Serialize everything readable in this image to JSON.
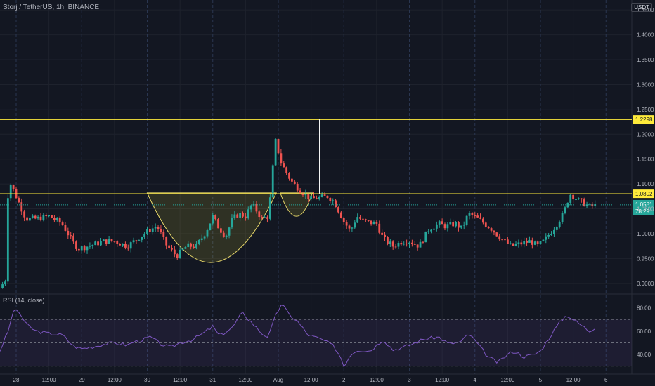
{
  "header": {
    "title": "Storj / TetherUS, 1h, BINANCE",
    "currency": "USDT"
  },
  "colors": {
    "up": "#26a69a",
    "down": "#ef5350",
    "level": "#ffeb3b",
    "rsi": "#7e57c2",
    "bg": "#131722",
    "grid": "#1e222d"
  },
  "chart_data": {
    "type": "candlestick",
    "price_axis": {
      "ticks": [
        "1.4500",
        "1.4000",
        "1.3500",
        "1.3000",
        "1.2500",
        "1.2000",
        "1.1500",
        "1.1000",
        "1.0500",
        "1.0000",
        "0.9500",
        "0.9000"
      ],
      "min": 0.88,
      "max": 1.47
    },
    "time_axis": [
      "28",
      "12:00",
      "29",
      "12:00",
      "30",
      "12:00",
      "31",
      "12:00",
      "Aug",
      "12:00",
      "2",
      "12:00",
      "3",
      "12:00",
      "4",
      "12:00",
      "5",
      "12:00",
      "6"
    ],
    "levels": [
      {
        "label": "1.2298",
        "value": 1.2298
      },
      {
        "label": "1.0802",
        "value": 1.0802
      }
    ],
    "last_price": {
      "label": "1.0581",
      "value": 1.0581,
      "countdown": "78:29"
    },
    "cup_pattern": {
      "start_day": 2.0,
      "bottom_day": 2.95,
      "bottom_price": 0.942,
      "end_day": 3.97,
      "rim": 1.082
    },
    "handle_pattern": {
      "start_day": 4.03,
      "bottom_day": 4.28,
      "bottom_price": 1.035,
      "end_day": 4.52,
      "rim": 1.082
    },
    "target_line": {
      "day": 4.63,
      "from": 1.0802,
      "to": 1.2298
    },
    "anchors": [
      [
        -0.25,
        0.89
      ],
      [
        -0.15,
        0.91
      ],
      [
        -0.12,
        1.11
      ],
      [
        -0.05,
        1.09
      ],
      [
        0.05,
        1.06
      ],
      [
        0.15,
        1.03
      ],
      [
        0.3,
        1.03
      ],
      [
        0.5,
        1.035
      ],
      [
        0.7,
        1.02
      ],
      [
        0.88,
        0.98
      ],
      [
        0.95,
        0.97
      ],
      [
        1.1,
        0.975
      ],
      [
        1.35,
        0.985
      ],
      [
        1.5,
        0.985
      ],
      [
        1.7,
        0.975
      ],
      [
        1.85,
        0.99
      ],
      [
        2.0,
        1.005
      ],
      [
        2.15,
        1.015
      ],
      [
        2.3,
        0.975
      ],
      [
        2.45,
        0.955
      ],
      [
        2.6,
        0.975
      ],
      [
        2.75,
        0.975
      ],
      [
        2.9,
        1.005
      ],
      [
        3.0,
        1.035
      ],
      [
        3.1,
        1.01
      ],
      [
        3.2,
        0.995
      ],
      [
        3.3,
        1.03
      ],
      [
        3.4,
        1.04
      ],
      [
        3.5,
        1.035
      ],
      [
        3.6,
        1.06
      ],
      [
        3.75,
        1.03
      ],
      [
        3.85,
        1.035
      ],
      [
        3.9,
        1.105
      ],
      [
        3.95,
        1.19
      ],
      [
        4.05,
        1.14
      ],
      [
        4.2,
        1.105
      ],
      [
        4.35,
        1.085
      ],
      [
        4.5,
        1.07
      ],
      [
        4.75,
        1.075
      ],
      [
        4.85,
        1.065
      ],
      [
        5.0,
        1.025
      ],
      [
        5.1,
        1.005
      ],
      [
        5.2,
        1.035
      ],
      [
        5.3,
        1.025
      ],
      [
        5.5,
        1.02
      ],
      [
        5.6,
        0.99
      ],
      [
        5.75,
        0.975
      ],
      [
        5.9,
        0.985
      ],
      [
        6.0,
        0.985
      ],
      [
        6.15,
        0.975
      ],
      [
        6.3,
        1.01
      ],
      [
        6.45,
        1.02
      ],
      [
        6.55,
        1.015
      ],
      [
        6.7,
        1.02
      ],
      [
        6.8,
        1.01
      ],
      [
        6.9,
        1.04
      ],
      [
        7.05,
        1.03
      ],
      [
        7.25,
        1.01
      ],
      [
        7.4,
        0.99
      ],
      [
        7.55,
        0.975
      ],
      [
        7.7,
        0.98
      ],
      [
        7.85,
        0.985
      ],
      [
        7.95,
        0.975
      ],
      [
        8.05,
        0.985
      ],
      [
        8.2,
        1.01
      ],
      [
        8.35,
        1.04
      ],
      [
        8.45,
        1.08
      ],
      [
        8.6,
        1.065
      ],
      [
        8.75,
        1.055
      ],
      [
        8.85,
        1.058
      ]
    ],
    "rsi": {
      "label": "RSI (14, close)",
      "ticks": [
        "80.00",
        "60.00",
        "40.00"
      ],
      "min": 25,
      "max": 90,
      "bands": [
        70,
        50,
        30
      ],
      "series": [
        [
          -0.25,
          43
        ],
        [
          -0.1,
          63
        ],
        [
          -0.05,
          78
        ],
        [
          0.05,
          76
        ],
        [
          0.15,
          66
        ],
        [
          0.3,
          60
        ],
        [
          0.5,
          58
        ],
        [
          0.7,
          57
        ],
        [
          0.88,
          47
        ],
        [
          1.0,
          45
        ],
        [
          1.2,
          47
        ],
        [
          1.35,
          49
        ],
        [
          1.5,
          50
        ],
        [
          1.7,
          48
        ],
        [
          1.8,
          51
        ],
        [
          1.9,
          52
        ],
        [
          2.05,
          55
        ],
        [
          2.2,
          49
        ],
        [
          2.35,
          46
        ],
        [
          2.5,
          50
        ],
        [
          2.7,
          53
        ],
        [
          2.85,
          58
        ],
        [
          3.0,
          64
        ],
        [
          3.1,
          56
        ],
        [
          3.3,
          63
        ],
        [
          3.45,
          76
        ],
        [
          3.55,
          70
        ],
        [
          3.75,
          58
        ],
        [
          3.85,
          55
        ],
        [
          3.95,
          72
        ],
        [
          4.05,
          84
        ],
        [
          4.15,
          75
        ],
        [
          4.3,
          68
        ],
        [
          4.45,
          57
        ],
        [
          4.7,
          52
        ],
        [
          4.85,
          47
        ],
        [
          4.95,
          38
        ],
        [
          5.0,
          30
        ],
        [
          5.1,
          40
        ],
        [
          5.2,
          44
        ],
        [
          5.4,
          43
        ],
        [
          5.6,
          53
        ],
        [
          5.75,
          44
        ],
        [
          5.9,
          46
        ],
        [
          6.05,
          49
        ],
        [
          6.2,
          53
        ],
        [
          6.45,
          55
        ],
        [
          6.6,
          49
        ],
        [
          6.8,
          51
        ],
        [
          6.9,
          58
        ],
        [
          7.0,
          52
        ],
        [
          7.2,
          38
        ],
        [
          7.35,
          33
        ],
        [
          7.5,
          40
        ],
        [
          7.6,
          43
        ],
        [
          7.75,
          38
        ],
        [
          7.9,
          40
        ],
        [
          8.0,
          43
        ],
        [
          8.2,
          60
        ],
        [
          8.3,
          68
        ],
        [
          8.4,
          74
        ],
        [
          8.5,
          70
        ],
        [
          8.6,
          66
        ],
        [
          8.75,
          60
        ],
        [
          8.85,
          64
        ]
      ]
    }
  }
}
